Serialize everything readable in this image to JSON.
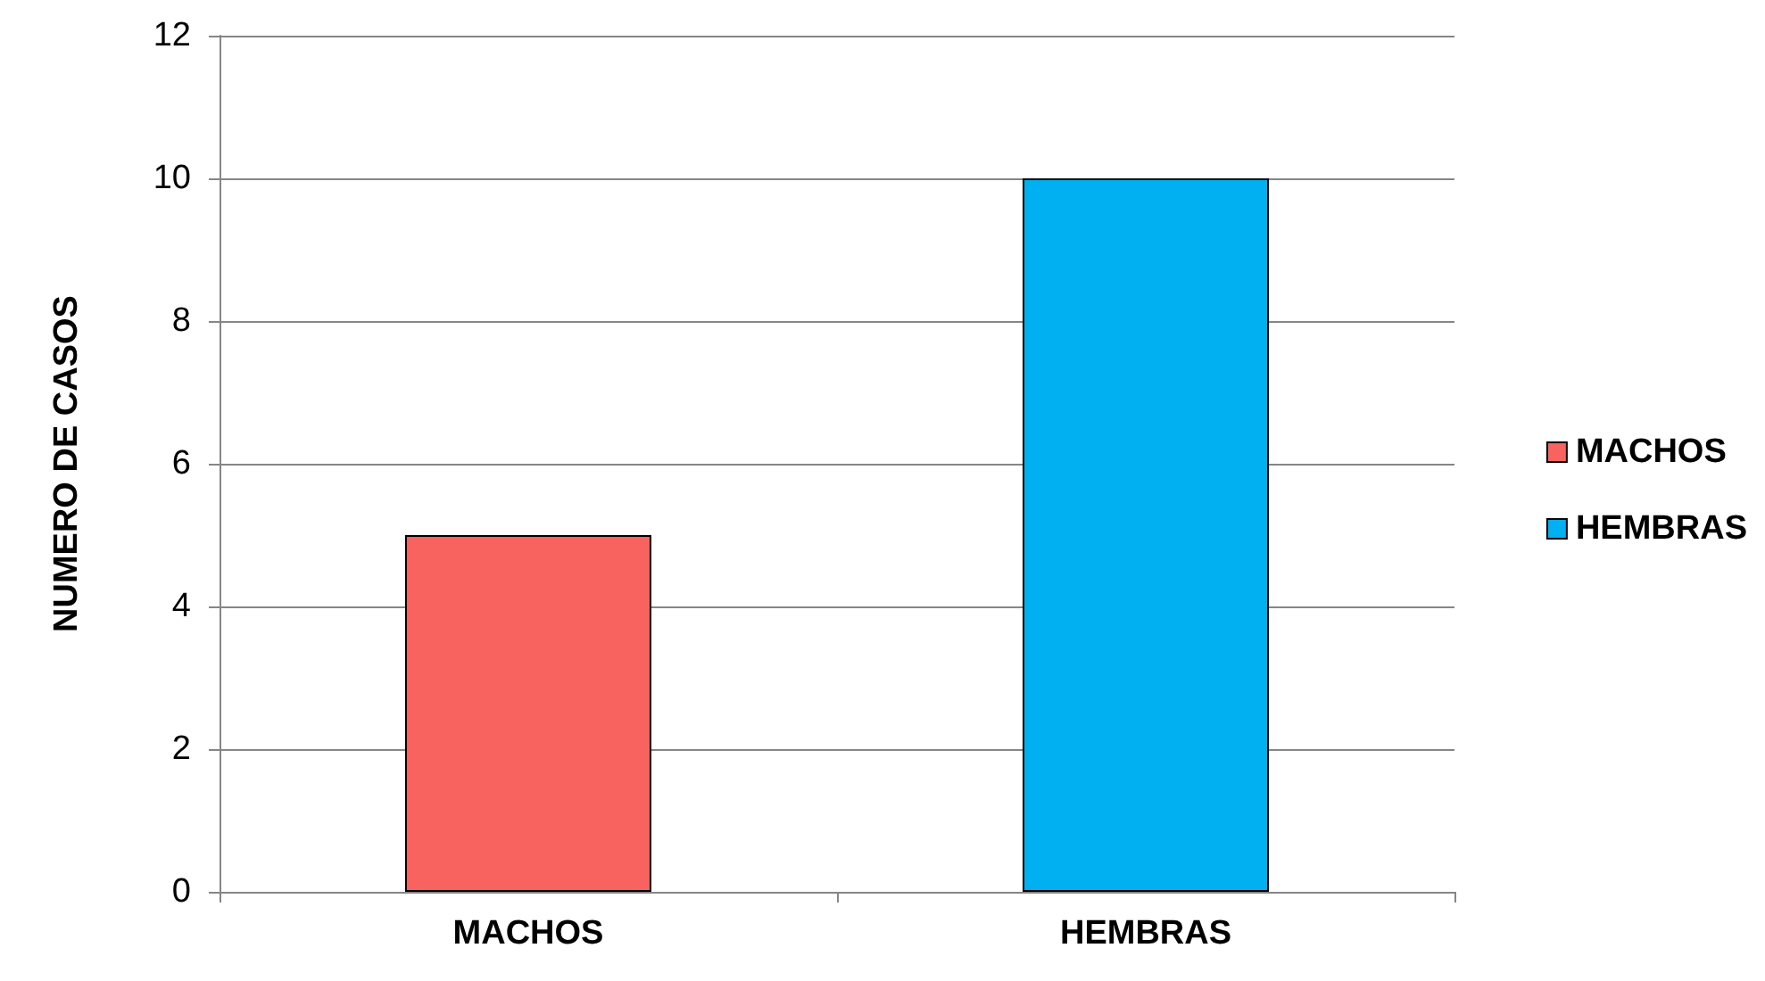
{
  "chart_data": {
    "type": "bar",
    "ylabel": "NUMERO DE CASOS",
    "categories": [
      "MACHOS",
      "HEMBRAS"
    ],
    "series": [
      {
        "name": "MACHOS",
        "color": "#f8635f",
        "values": [
          5,
          null
        ]
      },
      {
        "name": "HEMBRAS",
        "color": "#00b0f0",
        "values": [
          null,
          10
        ]
      }
    ],
    "ylim": [
      0,
      12
    ],
    "yticks": [
      0,
      2,
      4,
      6,
      8,
      10,
      12
    ],
    "grid": "y",
    "legend": "right"
  }
}
